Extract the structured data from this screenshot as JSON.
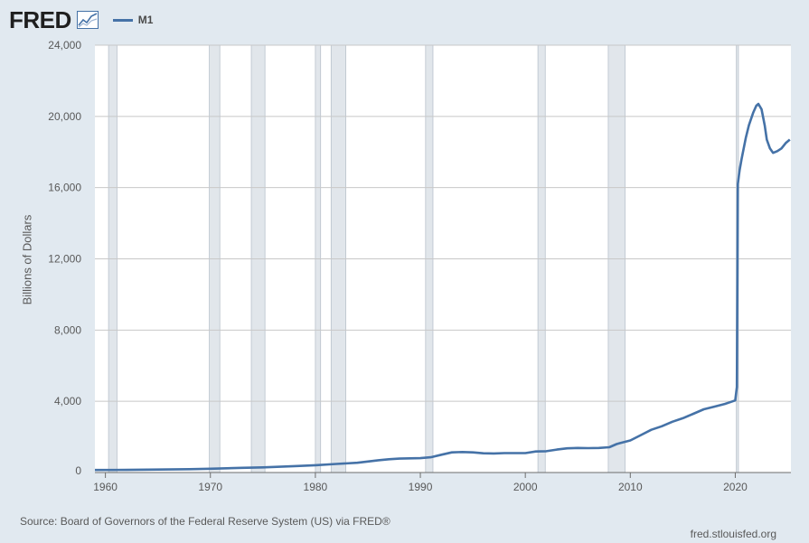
{
  "header": {
    "logo_text": "FRED",
    "logo_icon": "line-chart-icon",
    "legend_label": "M1"
  },
  "colors": {
    "series": "#4572a7",
    "background": "#e1e9f0",
    "plot_background": "#ffffff",
    "recession": "#e1e6eb",
    "grid": "#c8c8c8"
  },
  "footer": {
    "source": "Source: Board of Governors of the Federal Reserve System (US) via FRED®",
    "site": "fred.stlouisfed.org"
  },
  "chart_data": {
    "type": "line",
    "title": "",
    "xlabel": "",
    "ylabel": "Billions of Dollars",
    "xlim": [
      1959,
      2025.3
    ],
    "ylim": [
      0,
      24000
    ],
    "y_ticks": [
      0,
      4000,
      8000,
      12000,
      16000,
      20000,
      24000
    ],
    "y_tick_labels": [
      "0",
      "4,000",
      "8,000",
      "12,000",
      "16,000",
      "20,000",
      "24,000"
    ],
    "x_ticks": [
      1960,
      1970,
      1980,
      1990,
      2000,
      2010,
      2020
    ],
    "x_tick_labels": [
      "1960",
      "1970",
      "1980",
      "1990",
      "2000",
      "2010",
      "2020"
    ],
    "grid": "horizontal",
    "legend": "top-left",
    "recessions": [
      [
        1960.3,
        1961.1
      ],
      [
        1969.9,
        1970.9
      ],
      [
        1973.9,
        1975.2
      ],
      [
        1980.0,
        1980.5
      ],
      [
        1981.5,
        1982.9
      ],
      [
        1990.5,
        1991.2
      ],
      [
        2001.2,
        2001.9
      ],
      [
        2007.9,
        2009.5
      ],
      [
        2020.1,
        2020.3
      ]
    ],
    "series": [
      {
        "name": "M1",
        "x": [
          1959,
          1962,
          1965,
          1968,
          1970,
          1973,
          1975,
          1978,
          1980,
          1982,
          1984,
          1986,
          1987,
          1988,
          1990,
          1991,
          1992,
          1993,
          1994,
          1995,
          1996,
          1997,
          1998,
          2000,
          2001,
          2002,
          2003,
          2004,
          2005,
          2006,
          2007,
          2008,
          2008.7,
          2009,
          2010,
          2011,
          2012,
          2013,
          2014,
          2015,
          2016,
          2017,
          2018,
          2019,
          2019.5,
          2020.0,
          2020.15,
          2020.25,
          2020.35,
          2020.42,
          2020.6,
          2021.0,
          2021.3,
          2021.7,
          2022.0,
          2022.2,
          2022.5,
          2022.8,
          2023.0,
          2023.3,
          2023.6,
          2024.0,
          2024.4,
          2024.8,
          2025.2
        ],
        "y": [
          140,
          146,
          166,
          190,
          214,
          262,
          287,
          360,
          409,
          480,
          550,
          690,
          745,
          780,
          805,
          860,
          1000,
          1130,
          1150,
          1130,
          1080,
          1070,
          1090,
          1090,
          1180,
          1200,
          1290,
          1360,
          1380,
          1370,
          1380,
          1420,
          1600,
          1650,
          1800,
          2100,
          2400,
          2600,
          2850,
          3050,
          3300,
          3550,
          3700,
          3850,
          3950,
          4050,
          4800,
          16200,
          16700,
          17000,
          17600,
          18800,
          19500,
          20200,
          20600,
          20700,
          20400,
          19500,
          18700,
          18200,
          17950,
          18050,
          18200,
          18500,
          18700
        ]
      }
    ]
  }
}
